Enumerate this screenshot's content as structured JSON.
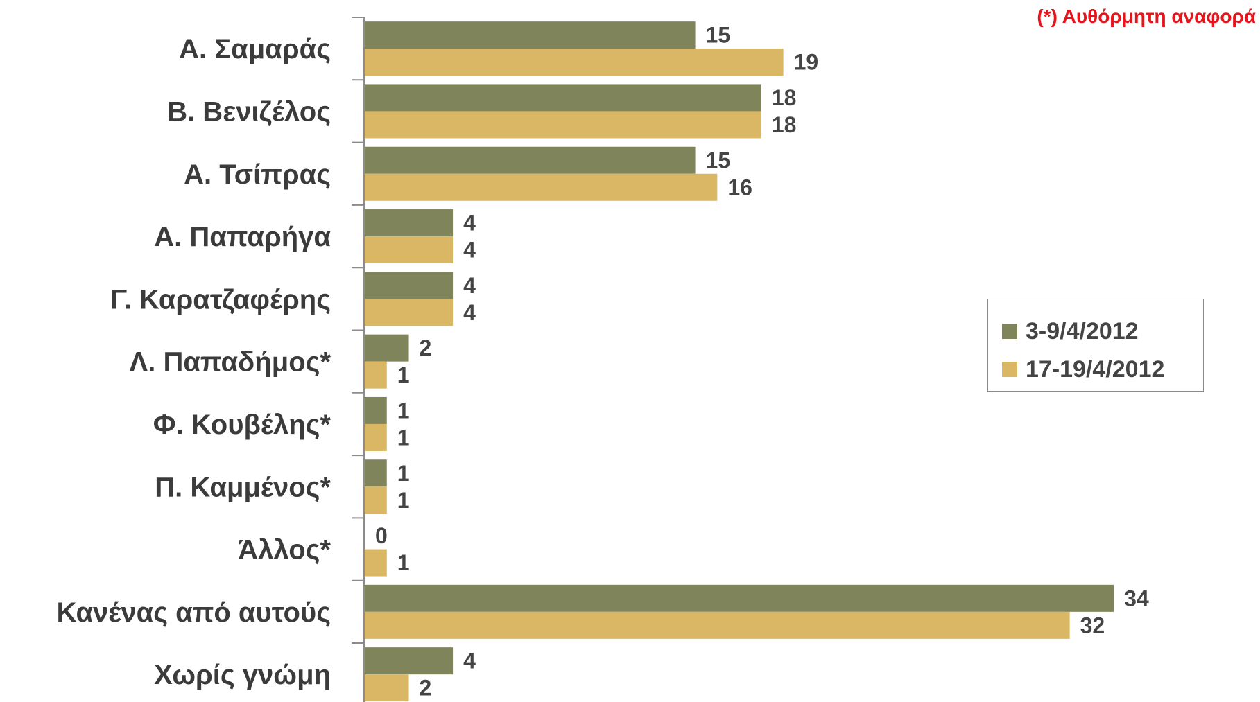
{
  "note": "(*) Αυθόρμητη αναφορά",
  "colors": {
    "series1": "#7f845a",
    "series2": "#d9b765",
    "axis": "#8c8c8c"
  },
  "chart_data": {
    "type": "bar",
    "orientation": "horizontal",
    "categories": [
      "Α. Σαμαράς",
      "Β. Βενιζέλος",
      "Α. Τσίπρας",
      "Α. Παπαρήγα",
      "Γ. Καρατζαφέρης",
      "Λ. Παπαδήμος*",
      "Φ. Κουβέλης*",
      "Π. Καμμένος*",
      "Άλλος*",
      "Κανένας από αυτούς",
      "Χωρίς γνώμη"
    ],
    "series": [
      {
        "name": "3-9/4/2012",
        "values": [
          15,
          18,
          15,
          4,
          4,
          2,
          1,
          1,
          0,
          34,
          4
        ]
      },
      {
        "name": "17-19/4/2012",
        "values": [
          19,
          18,
          16,
          4,
          4,
          1,
          1,
          1,
          1,
          32,
          2
        ]
      }
    ],
    "xlim": [
      0,
      34
    ],
    "legend_position": "right",
    "grid": false
  }
}
